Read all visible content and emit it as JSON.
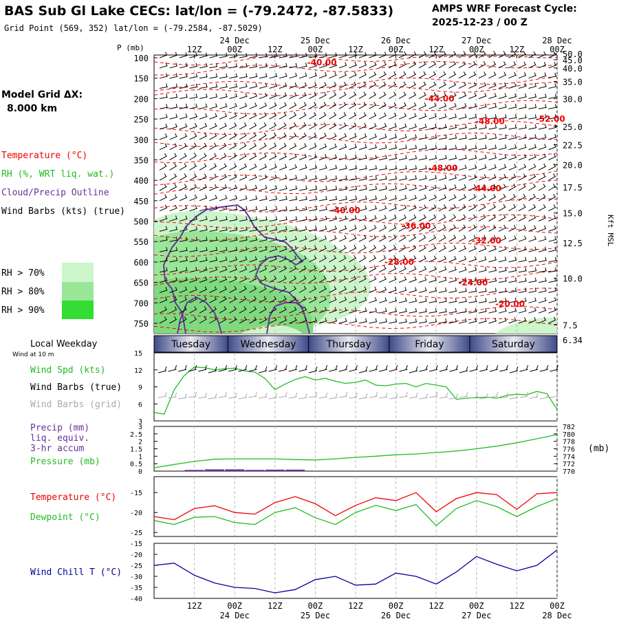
{
  "header": {
    "title": "BAS Sub Gl Lake CECs:  lat/lon = (-79.2472, -87.5833)",
    "grid_point": "Grid Point (569, 352) lat/lon = (-79.2584, -87.5029)",
    "cycle_label": "AMPS WRF Forecast Cycle:",
    "cycle_value": "2025-12-23 / 00  Z"
  },
  "sidebar": {
    "model_grid_label": "Model Grid ΔX:",
    "model_grid_value": "8.000 km",
    "legend_temperature": "Temperature (°C)",
    "legend_rh": "RH (%, WRT liq. wat.)",
    "legend_cloud": "Cloud/Precip Outline",
    "legend_wind": "Wind Barbs (kts) (true)",
    "rh_levels": [
      "RH > 70%",
      "RH > 80%",
      "RH > 90%"
    ],
    "local_weekday": "Local Weekday",
    "wind_at_10m": "Wind at 10 m",
    "wind_spd_label": "Wind Spd (kts)",
    "wind_barbs_true": "Wind Barbs (true)",
    "wind_barbs_grid": "Wind Barbs (grid)",
    "precip_label_1": "Precip (mm)",
    "precip_label_2": "liq. equiv.",
    "precip_label_3": "3-hr accum",
    "pressure_label": "Pressure (mb)",
    "pressure_unit": "(mb)",
    "temp_label": "Temperature (°C)",
    "dew_label": "Dewpoint (°C)",
    "windchill_label": "Wind Chill T (°C)"
  },
  "colors": {
    "temperature": "#ee0000",
    "rh": "#22bb22",
    "cloud": "#663399",
    "wind": "#000000",
    "wind_grid": "#aaaaaa",
    "windchill": "#000099",
    "rh70": "#ccf5cc",
    "rh80": "#99e699",
    "rh90": "#33dd33",
    "weekday_dark": "#404a8a",
    "weekday_light": "#e8e8f0"
  },
  "chart_data": [
    {
      "type": "line",
      "name": "cross-section",
      "pressure_axis_label": "P (mb)",
      "pressure_ticks": [
        100,
        150,
        200,
        250,
        300,
        350,
        400,
        450,
        500,
        550,
        600,
        650,
        700,
        750
      ],
      "height_axis_label": "Kft MSL",
      "height_ticks": [
        "50.0",
        "45.0",
        "40.0",
        "35.0",
        "30.0",
        "25.0",
        "22.5",
        "20.0",
        "17.5",
        "15.0",
        "12.5",
        "10.0",
        "7.5",
        "6.34"
      ],
      "height_tick_pressures": [
        90,
        105,
        125,
        158,
        200,
        268,
        313,
        362,
        417,
        480,
        553,
        640,
        754,
        790
      ],
      "time_ticks_top": [
        "12Z",
        "00Z",
        "12Z",
        "00Z",
        "12Z",
        "00Z",
        "12Z",
        "00Z",
        "12Z",
        "00Z"
      ],
      "date_ticks_top": [
        "24 Dec",
        "25 Dec",
        "26 Dec",
        "27 Dec",
        "28 Dec"
      ],
      "temperature_labels": [
        "-40.00",
        "-44.00",
        "-48.00",
        "-52.00",
        "-48.00",
        "-44.00",
        "-40.00",
        "-36.00",
        "-32.00",
        "-28.00",
        "-24.00",
        "-20.00"
      ],
      "temperature_label_positions": [
        [
          50,
          112
        ],
        [
          85,
          200
        ],
        [
          100,
          256
        ],
        [
          118,
          250
        ],
        [
          86,
          370
        ],
        [
          99,
          420
        ],
        [
          57,
          474
        ],
        [
          78,
          512
        ],
        [
          99,
          548
        ],
        [
          73,
          600
        ],
        [
          95,
          651
        ],
        [
          106,
          703
        ]
      ]
    },
    {
      "type": "line",
      "name": "surface-wind",
      "y_ticks": [
        15,
        12,
        9,
        6,
        3
      ],
      "ylim": [
        3,
        15
      ],
      "hours": [
        0,
        3,
        6,
        9,
        12,
        15,
        18,
        21,
        24,
        27,
        30,
        33,
        36,
        39,
        42,
        45,
        48,
        51,
        54,
        57,
        60,
        63,
        66,
        69,
        72,
        75,
        78,
        81,
        84,
        87,
        90,
        93,
        96,
        99,
        102,
        105,
        108,
        111,
        114,
        117,
        120
      ],
      "wind_speed": [
        4.5,
        4.2,
        8.5,
        11.0,
        12.5,
        12.4,
        12.0,
        12.2,
        12.3,
        11.8,
        11.6,
        10.5,
        8.5,
        9.5,
        10.3,
        10.8,
        10.2,
        10.5,
        10.0,
        9.6,
        9.8,
        10.2,
        9.3,
        9.2,
        9.5,
        9.6,
        9.0,
        9.6,
        9.3,
        9.0,
        6.8,
        7.0,
        7.1,
        7.2,
        7.0,
        7.5,
        7.7,
        7.6,
        8.2,
        7.8,
        5.0
      ]
    },
    {
      "type": "line",
      "name": "precip-pressure",
      "precip_ticks": [
        3,
        2.5,
        2,
        1.5,
        1,
        0.5,
        0
      ],
      "pressure_ticks": [
        782,
        780,
        778,
        776,
        774,
        772,
        770
      ],
      "precip_ylim": [
        0,
        3
      ],
      "pressure_ylim": [
        770,
        782
      ],
      "hours": [
        0,
        6,
        12,
        18,
        24,
        30,
        36,
        42,
        48,
        54,
        60,
        66,
        72,
        78,
        84,
        90,
        96,
        102,
        108,
        114,
        120
      ],
      "pressure": [
        770.9,
        771.8,
        772.6,
        773.2,
        773.3,
        773.3,
        773.3,
        773.1,
        773.0,
        773.3,
        773.7,
        774.0,
        774.4,
        774.6,
        775.0,
        775.4,
        776.0,
        776.7,
        777.6,
        778.7,
        779.8
      ],
      "precip": [
        0,
        0,
        0.08,
        0.12,
        0.12,
        0.08,
        0.1,
        0.1,
        0,
        0,
        0,
        0,
        0,
        0,
        0,
        0,
        0,
        0,
        0,
        0,
        0
      ]
    },
    {
      "type": "line",
      "name": "temperature-dewpoint",
      "y_ticks": [
        -15,
        -20,
        -25
      ],
      "ylim": [
        -26,
        -11
      ],
      "hours": [
        0,
        6,
        12,
        18,
        24,
        30,
        36,
        42,
        48,
        54,
        60,
        66,
        72,
        78,
        84,
        90,
        96,
        102,
        108,
        114,
        120
      ],
      "temperature": [
        -21.0,
        -21.8,
        -19.0,
        -18.3,
        -20.0,
        -20.4,
        -17.5,
        -16.0,
        -17.8,
        -20.8,
        -18.2,
        -16.3,
        -17.0,
        -15.0,
        -19.8,
        -16.5,
        -15.0,
        -15.5,
        -19.2,
        -15.3,
        -15.0
      ],
      "dewpoint": [
        -22.0,
        -23.0,
        -21.2,
        -21.0,
        -22.5,
        -23.0,
        -20.0,
        -18.8,
        -21.3,
        -23.0,
        -20.0,
        -18.2,
        -19.5,
        -18.0,
        -23.3,
        -19.0,
        -17.0,
        -18.5,
        -21.0,
        -18.5,
        -16.5
      ]
    },
    {
      "type": "line",
      "name": "wind-chill",
      "y_ticks": [
        -15,
        -20,
        -25,
        -30,
        -35,
        -40
      ],
      "ylim": [
        -40,
        -15
      ],
      "hours": [
        0,
        6,
        12,
        18,
        24,
        30,
        36,
        42,
        48,
        54,
        60,
        66,
        72,
        78,
        84,
        90,
        96,
        102,
        108,
        114,
        120
      ],
      "wind_chill": [
        -25.0,
        -24.0,
        -29.5,
        -33.0,
        -35.0,
        -35.5,
        -37.5,
        -36.0,
        -31.5,
        -30.0,
        -34.0,
        -33.5,
        -28.5,
        -30.0,
        -33.5,
        -28.0,
        -21.0,
        -24.5,
        -27.5,
        -25.0,
        -18.0
      ]
    }
  ],
  "bottom_axis": {
    "time_ticks": [
      "12Z",
      "00Z",
      "12Z",
      "00Z",
      "12Z",
      "00Z",
      "12Z",
      "00Z",
      "12Z",
      "00Z"
    ],
    "date_ticks": [
      "24 Dec",
      "25 Dec",
      "26 Dec",
      "27 Dec",
      "28 Dec"
    ]
  },
  "weekdays": [
    "Tuesday",
    "Wednesday",
    "Thursday",
    "Friday",
    "Saturday"
  ]
}
